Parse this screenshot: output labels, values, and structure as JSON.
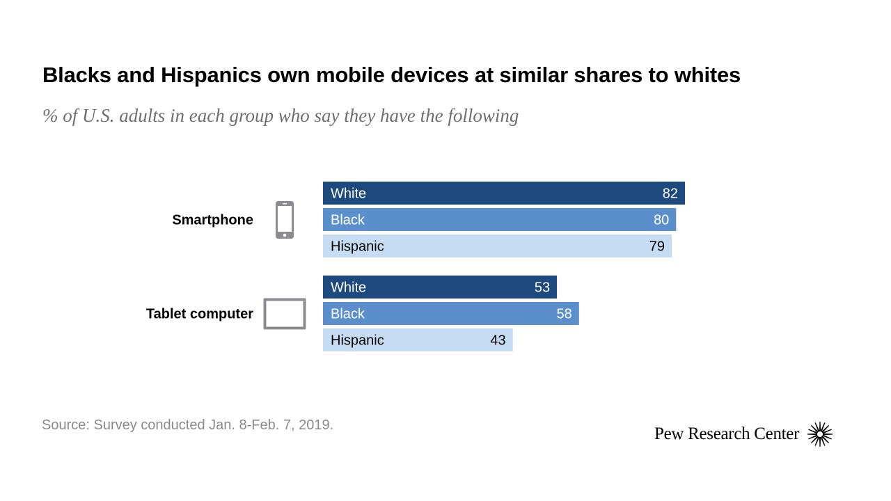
{
  "title": "Blacks and Hispanics own mobile devices at similar shares to whites",
  "subtitle": "% of U.S. adults in each group who say they have the following",
  "source": "Source: Survey conducted Jan. 8-Feb. 7, 2019.",
  "brand": "Pew Research Center",
  "colors": {
    "White": "#1c4a7e",
    "Black": "#5a8fcb",
    "Hispanic": "#c6dcf2",
    "icon": "#8c8d90"
  },
  "chart_data": {
    "type": "bar",
    "orientation": "horizontal",
    "groups": [
      {
        "label": "Smartphone",
        "icon": "smartphone-icon",
        "bars": [
          {
            "category": "White",
            "value": 82
          },
          {
            "category": "Black",
            "value": 80
          },
          {
            "category": "Hispanic",
            "value": 79
          }
        ]
      },
      {
        "label": "Tablet computer",
        "icon": "tablet-icon",
        "bars": [
          {
            "category": "White",
            "value": 53
          },
          {
            "category": "Black",
            "value": 58
          },
          {
            "category": "Hispanic",
            "value": 43
          }
        ]
      }
    ],
    "xlim": [
      0,
      100
    ],
    "grid": false,
    "legend": "none"
  }
}
